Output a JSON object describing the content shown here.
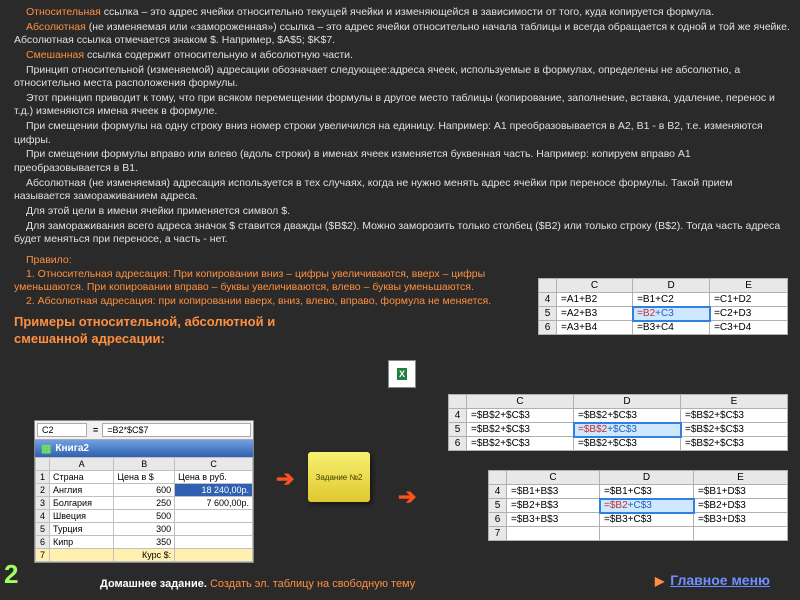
{
  "accent_color": "#ff9040",
  "bg_color": "#2a2a2a",
  "text_color": "#e0e0e0",
  "page_number": "2",
  "paragraphs": {
    "p1a": "Относительная",
    "p1b": " ссылка – это адрес ячейки относительно текущей ячейки и изменяющейся в зависимости от того, куда копируется формула.",
    "p2a": "Абсолютная",
    "p2b": " (не изменяемая или «замороженная») ссылка – это адрес ячейки относительно начала таблицы и всегда обращается к одной и той же ячейке. Абсолютная ссылка отмечается знаком $. Например, $A$5; $K$7.",
    "p3a": "Смешанная",
    "p3b": " ссылка содержит относительную и абсолютную части.",
    "p4": "Принцип относительной (изменяемой) адресации обозначает следующее:адреса ячеек, используемые в формулах, определены не абсолютно, а относительно места расположения формулы.",
    "p5": "Этот принцип приводит к тому, что при всяком перемещении формулы в другое место таблицы (копирование, заполнение, вставка, удаление, перенос и т.д.) изменяются имена ячеек в формуле.",
    "p6": "При смещении формулы на одну строку вниз номер строки увеличился на единицу. Например: A1 преобразовывается в A2, B1 - в B2, т.е. изменяются цифры.",
    "p7": "При смещении формулы вправо или влево (вдоль строки) в именах ячеек изменяется буквенная часть. Например: копируем вправо A1 преобразовывается в B1.",
    "p8": "Абсолютная (не изменяемая) адресация используется в тех случаях, когда не нужно менять адрес ячейки при переносе формулы. Такой прием называется замораживанием адреса.",
    "p9": "Для этой цели в имени ячейки применяется символ $.",
    "p10": "Для замораживания всего адреса значок $ ставится дважды ($B$2). Можно заморозить только столбец ($B2) или только строку (B$2). Тогда часть адреса будет меняться при переносе, а часть - нет."
  },
  "rule": {
    "title": "Правило:",
    "r1": "1. Относительная адресация: При копировании вниз – цифры увеличиваются, вверх – цифры уменьшаются.    При копировании вправо – буквы увеличиваются, влево – буквы уменьшаются.",
    "r2": "2. Абсолютная адресация: при копировании вверх, вниз, влево, вправо, формула не меняется."
  },
  "examples_title": "Примеры относительной, абсолютной и смешанной адресации:",
  "homework_label": "Домашнее задание.",
  "homework_text": " Создать эл. таблицу на свободную тему",
  "menu_label": "Главное меню",
  "sticky_note": "Задание №2",
  "grid1": {
    "cols": [
      "C",
      "D",
      "E"
    ],
    "rows": [
      "4",
      "5",
      "6"
    ],
    "cells": [
      [
        "=A1+B2",
        "=B1+C2",
        "=C1+D2"
      ],
      [
        "=A2+B3",
        "=B2+C3",
        "=C2+D3"
      ],
      [
        "=A3+B4",
        "=B3+C4",
        "=C3+D4"
      ]
    ],
    "sel": [
      1,
      1
    ],
    "sel_parts": [
      "=B2",
      "+C3"
    ]
  },
  "grid2": {
    "cols": [
      "C",
      "D",
      "E"
    ],
    "rows": [
      "4",
      "5",
      "6"
    ],
    "cells": [
      [
        "=$B$2+$C$3",
        "=$B$2+$C$3",
        "=$B$2+$C$3"
      ],
      [
        "=$B$2+$C$3",
        "=$B$2+$C$3",
        "=$B$2+$C$3"
      ],
      [
        "=$B$2+$C$3",
        "=$B$2+$C$3",
        "=$B$2+$C$3"
      ]
    ],
    "sel": [
      1,
      1
    ],
    "sel_parts": [
      "=$B$2",
      "+$C$3"
    ]
  },
  "grid3": {
    "cols": [
      "C",
      "D",
      "E"
    ],
    "rows": [
      "4",
      "5",
      "6",
      "7"
    ],
    "cells": [
      [
        "=$B1+B$3",
        "=$B1+C$3",
        "=$B1+D$3"
      ],
      [
        "=$B2+B$3",
        "=$B2+C$3",
        "=$B2+D$3"
      ],
      [
        "=$B3+B$3",
        "=$B3+C$3",
        "=$B3+D$3"
      ],
      [
        "",
        "",
        ""
      ]
    ],
    "sel": [
      1,
      1
    ],
    "sel_parts": [
      "=$B2",
      "+C$3"
    ]
  },
  "excel": {
    "active_cell": "C2",
    "formula": "=B2*$C$7",
    "book_title": "Книга2",
    "cols": [
      "A",
      "B",
      "C"
    ],
    "rows": [
      {
        "n": "1",
        "cells": [
          "Страна",
          "Цена в $",
          "Цена в руб."
        ]
      },
      {
        "n": "2",
        "cells": [
          "Англия",
          "600",
          "18 240,00p."
        ]
      },
      {
        "n": "3",
        "cells": [
          "Болгария",
          "250",
          "7 600,00p."
        ]
      },
      {
        "n": "4",
        "cells": [
          "Швеция",
          "500",
          ""
        ]
      },
      {
        "n": "5",
        "cells": [
          "Турция",
          "300",
          ""
        ]
      },
      {
        "n": "6",
        "cells": [
          "Кипр",
          "350",
          ""
        ]
      },
      {
        "n": "7",
        "cells": [
          "",
          "Курс $:",
          ""
        ],
        "yellow": true
      }
    ]
  }
}
